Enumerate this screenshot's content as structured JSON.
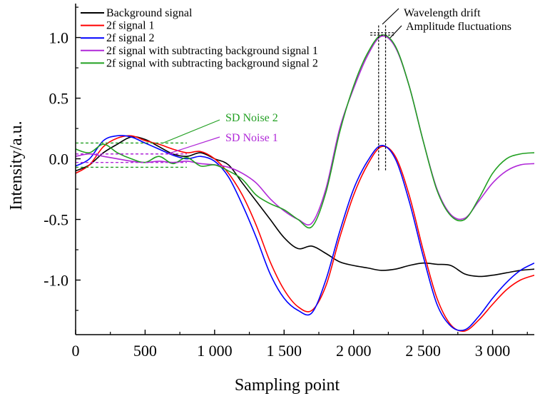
{
  "chart_data": {
    "type": "line",
    "title": "",
    "xlabel": "Sampling point",
    "ylabel": "Intensity/a.u.",
    "xlim": [
      0,
      3300
    ],
    "ylim": [
      -1.45,
      1.28
    ],
    "grid": false,
    "legend_position": "top-left",
    "x_ticks": [
      {
        "value": 0,
        "label": "0"
      },
      {
        "value": 500,
        "label": "500"
      },
      {
        "value": 1000,
        "label": "1 000"
      },
      {
        "value": 1500,
        "label": "1 500"
      },
      {
        "value": 2000,
        "label": "2 000"
      },
      {
        "value": 2500,
        "label": "2 500"
      },
      {
        "value": 3000,
        "label": "3 000"
      }
    ],
    "y_ticks": [
      {
        "value": 1.0,
        "label": "1.0"
      },
      {
        "value": 0.5,
        "label": "0.5"
      },
      {
        "value": 0.0,
        "label": "0.0"
      },
      {
        "value": -0.5,
        "label": "-0.5"
      },
      {
        "value": -1.0,
        "label": "-1.0"
      }
    ],
    "series": [
      {
        "name": "Background signal",
        "color": "#000000",
        "x": [
          0,
          100,
          200,
          300,
          400,
          500,
          600,
          700,
          800,
          900,
          1000,
          1100,
          1200,
          1300,
          1400,
          1500,
          1600,
          1700,
          1800,
          1900,
          2000,
          2100,
          2200,
          2300,
          2400,
          2500,
          2600,
          2700,
          2800,
          2900,
          3000,
          3100,
          3200,
          3300
        ],
        "y": [
          -0.1,
          -0.05,
          0.05,
          0.12,
          0.18,
          0.16,
          0.1,
          0.04,
          0.02,
          0.05,
          0.0,
          -0.05,
          -0.2,
          -0.35,
          -0.5,
          -0.65,
          -0.74,
          -0.72,
          -0.78,
          -0.85,
          -0.88,
          -0.9,
          -0.92,
          -0.91,
          -0.88,
          -0.86,
          -0.87,
          -0.88,
          -0.95,
          -0.97,
          -0.96,
          -0.94,
          -0.92,
          -0.91
        ]
      },
      {
        "name": "2f signal 1",
        "color": "#ff0000",
        "x": [
          0,
          100,
          200,
          300,
          400,
          500,
          600,
          700,
          800,
          900,
          1000,
          1100,
          1200,
          1300,
          1400,
          1500,
          1600,
          1700,
          1800,
          1900,
          2000,
          2100,
          2200,
          2300,
          2400,
          2500,
          2600,
          2700,
          2800,
          2900,
          3000,
          3100,
          3200,
          3300
        ],
        "y": [
          -0.12,
          -0.05,
          0.1,
          0.17,
          0.19,
          0.15,
          0.12,
          0.08,
          0.05,
          0.06,
          0.0,
          -0.12,
          -0.3,
          -0.55,
          -0.85,
          -1.08,
          -1.22,
          -1.25,
          -1.05,
          -0.65,
          -0.3,
          -0.05,
          0.1,
          0.02,
          -0.3,
          -0.75,
          -1.15,
          -1.37,
          -1.42,
          -1.33,
          -1.2,
          -1.08,
          -1.0,
          -0.96
        ]
      },
      {
        "name": "2f signal 2",
        "color": "#0000ff",
        "x": [
          0,
          100,
          200,
          300,
          400,
          500,
          600,
          700,
          800,
          900,
          1000,
          1100,
          1200,
          1300,
          1400,
          1500,
          1600,
          1700,
          1800,
          1900,
          2000,
          2100,
          2200,
          2300,
          2400,
          2500,
          2600,
          2700,
          2800,
          2900,
          3000,
          3100,
          3200,
          3300
        ],
        "y": [
          -0.06,
          0.0,
          0.15,
          0.19,
          0.18,
          0.13,
          0.08,
          0.03,
          0.0,
          0.02,
          -0.02,
          -0.15,
          -0.38,
          -0.65,
          -0.95,
          -1.15,
          -1.25,
          -1.27,
          -1.0,
          -0.6,
          -0.25,
          -0.02,
          0.11,
          0.0,
          -0.35,
          -0.8,
          -1.2,
          -1.38,
          -1.41,
          -1.3,
          -1.15,
          -1.02,
          -0.92,
          -0.86
        ]
      },
      {
        "name": "2f signal with subtracting background signal 1",
        "color": "#b028d8",
        "x": [
          0,
          100,
          200,
          300,
          400,
          500,
          600,
          700,
          800,
          900,
          1000,
          1100,
          1200,
          1300,
          1400,
          1500,
          1600,
          1700,
          1800,
          1900,
          2000,
          2100,
          2200,
          2300,
          2400,
          2500,
          2600,
          2700,
          2800,
          2900,
          3000,
          3100,
          3200,
          3300
        ],
        "y": [
          0.02,
          0.04,
          0.02,
          0.0,
          -0.02,
          -0.03,
          -0.02,
          -0.03,
          -0.02,
          -0.04,
          -0.05,
          -0.07,
          -0.12,
          -0.2,
          -0.33,
          -0.43,
          -0.5,
          -0.53,
          -0.25,
          0.25,
          0.58,
          0.85,
          1.01,
          0.92,
          0.6,
          0.15,
          -0.25,
          -0.46,
          -0.49,
          -0.35,
          -0.2,
          -0.1,
          -0.05,
          -0.04
        ]
      },
      {
        "name": "2f signal with subtracting background signal 2",
        "color": "#22a022",
        "x": [
          0,
          100,
          200,
          300,
          400,
          500,
          600,
          700,
          800,
          900,
          1000,
          1100,
          1200,
          1300,
          1400,
          1500,
          1600,
          1700,
          1800,
          1900,
          2000,
          2100,
          2200,
          2300,
          2400,
          2500,
          2600,
          2700,
          2800,
          2900,
          3000,
          3100,
          3200,
          3300
        ],
        "y": [
          0.08,
          0.05,
          0.12,
          0.05,
          0.0,
          -0.03,
          0.02,
          -0.04,
          0.01,
          -0.06,
          -0.05,
          -0.1,
          -0.17,
          -0.3,
          -0.37,
          -0.42,
          -0.5,
          -0.56,
          -0.28,
          0.22,
          0.6,
          0.87,
          1.02,
          0.93,
          0.6,
          0.15,
          -0.26,
          -0.47,
          -0.5,
          -0.33,
          -0.12,
          0.0,
          0.04,
          0.05
        ]
      }
    ],
    "annotations": [
      {
        "text": "Wavelength drift",
        "color": "#000000"
      },
      {
        "text": "Amplitude fluctuations",
        "color": "#000000"
      },
      {
        "text": "SD Noise 2",
        "color": "#22a022"
      },
      {
        "text": "SD Noise 1",
        "color": "#b028d8"
      }
    ],
    "noise_bands": [
      {
        "name": "SD Noise 2",
        "color": "#22a022",
        "x_range": [
          0,
          800
        ],
        "y_values": [
          0.13,
          -0.07
        ]
      },
      {
        "name": "SD Noise 1",
        "color": "#b028d8",
        "x_range": [
          0,
          800
        ],
        "y_values": [
          0.04,
          -0.03
        ]
      }
    ],
    "peak_markers": {
      "x_values": [
        2180,
        2230
      ],
      "y_values": [
        1.04,
        1.02
      ],
      "y_bottom": -0.1
    }
  }
}
